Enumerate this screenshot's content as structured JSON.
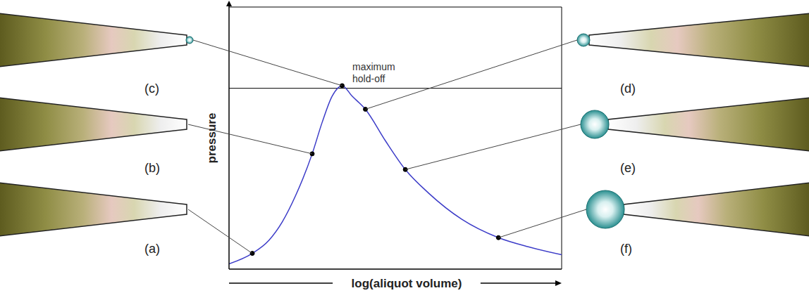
{
  "chart_data": {
    "type": "line",
    "xlabel": "log(aliquot volume)",
    "ylabel": "pressure",
    "x": [
      0,
      0.7,
      1.2,
      1.6,
      2.0,
      2.5,
      2.8,
      3.1,
      3.4,
      3.7,
      4.1,
      4.7,
      5.3,
      6.0,
      7.0,
      8.1,
      9.0,
      10
    ],
    "values": [
      0.2,
      0.6,
      1.1,
      1.8,
      2.8,
      4.4,
      5.6,
      6.6,
      7.0,
      6.6,
      6.1,
      4.9,
      3.8,
      2.9,
      1.9,
      1.2,
      0.85,
      0.55
    ],
    "color": "#3c3cc8",
    "xlim": [
      0,
      10
    ],
    "ylim": [
      0,
      10
    ],
    "tick_labels": false,
    "grid": false,
    "points": [
      {
        "label": "(a)",
        "x": 0.7,
        "y": 0.6
      },
      {
        "label": "(b)",
        "x": 2.5,
        "y": 4.4
      },
      {
        "label": "(c)",
        "x": 3.4,
        "y": 7.0
      },
      {
        "label": "(d)",
        "x": 4.1,
        "y": 6.1
      },
      {
        "label": "(e)",
        "x": 5.3,
        "y": 3.8
      },
      {
        "label": "(f)",
        "x": 8.1,
        "y": 1.2
      }
    ],
    "reference_lines": [
      {
        "y": 6.9,
        "label": "maximum hold-off"
      }
    ]
  }
}
